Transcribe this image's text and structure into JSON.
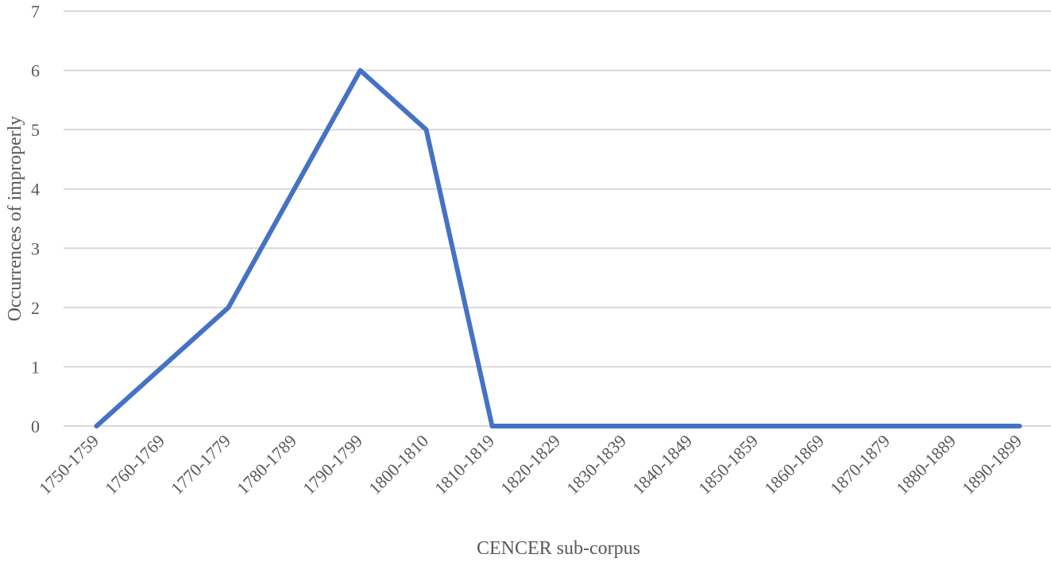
{
  "chart_data": {
    "type": "line",
    "title": "",
    "xlabel": "CENCER sub-corpus",
    "ylabel": "Occurrences of improperly",
    "ylim": [
      0,
      7
    ],
    "yticks": [
      0,
      1,
      2,
      3,
      4,
      5,
      6,
      7
    ],
    "grid": true,
    "legend": "none",
    "categories": [
      "1750-1759",
      "1760-1769",
      "1770-1779",
      "1780-1789",
      "1790-1799",
      "1800-1810",
      "1810-1819",
      "1820-1829",
      "1830-1839",
      "1840-1849",
      "1850-1859",
      "1860-1869",
      "1870-1879",
      "1880-1889",
      "1890-1899"
    ],
    "series": [
      {
        "color": "#4472c4",
        "values": [
          0,
          1,
          2,
          4,
          6,
          5,
          0,
          0,
          0,
          0,
          0,
          0,
          0,
          0,
          0
        ]
      }
    ]
  }
}
